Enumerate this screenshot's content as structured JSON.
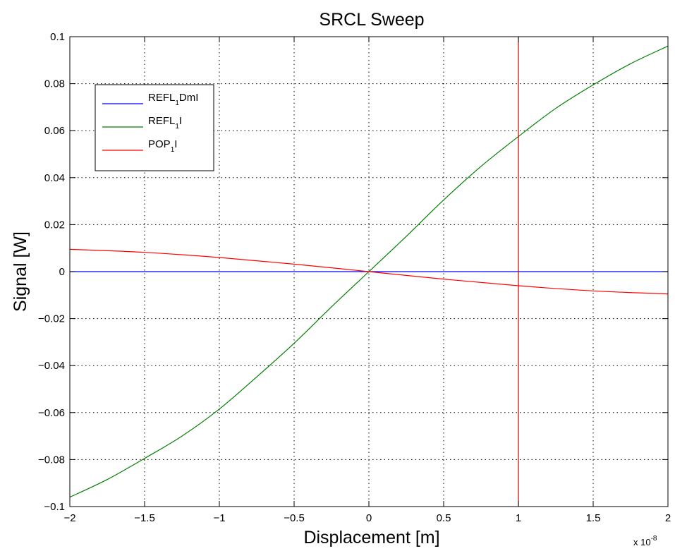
{
  "chart_data": {
    "type": "line",
    "title": "SRCL Sweep",
    "xlabel": "Displacement [m]",
    "ylabel": "Signal [W]",
    "x_multiplier": {
      "base": "x 10",
      "exponent": "-8"
    },
    "xlim": [
      -2,
      2
    ],
    "ylim": [
      -0.1,
      0.1
    ],
    "xticks": [
      -2,
      -1.5,
      -1,
      -0.5,
      0,
      0.5,
      1,
      1.5,
      2
    ],
    "xtick_labels": [
      "−2",
      "−1.5",
      "−1",
      "−0.5",
      "0",
      "0.5",
      "1",
      "1.5",
      "2"
    ],
    "yticks": [
      -0.1,
      -0.08,
      -0.06,
      -0.04,
      -0.02,
      0,
      0.02,
      0.04,
      0.06,
      0.08,
      0.1
    ],
    "ytick_labels": [
      "−0.1",
      "−0.08",
      "−0.06",
      "−0.04",
      "−0.02",
      "0",
      "0.02",
      "0.04",
      "0.06",
      "0.08",
      "0.1"
    ],
    "grid": true,
    "legend_position": "top-left",
    "series": [
      {
        "name": "REFL_1DmI",
        "legend": {
          "main": "REFL",
          "sub": "1",
          "suffix": "DmI"
        },
        "color": "#0000ff",
        "x": [
          -2,
          -1.5,
          -1,
          -0.5,
          0,
          0.5,
          1,
          1.5,
          2
        ],
        "y": [
          0,
          0,
          0,
          0,
          0,
          0,
          0,
          0,
          0
        ]
      },
      {
        "name": "REFL_1I",
        "legend": {
          "main": "REFL",
          "sub": "1",
          "suffix": "I"
        },
        "color": "#007f00",
        "x": [
          -2,
          -1.75,
          -1.5,
          -1.25,
          -1,
          -0.75,
          -0.5,
          -0.25,
          0,
          0.25,
          0.5,
          0.75,
          1,
          1.25,
          1.5,
          1.75,
          2
        ],
        "y": [
          -0.096,
          -0.0885,
          -0.0795,
          -0.07,
          -0.0585,
          -0.0448,
          -0.0305,
          -0.015,
          0,
          0.015,
          0.0305,
          0.0448,
          0.0575,
          0.0695,
          0.0795,
          0.0885,
          0.096
        ]
      },
      {
        "name": "POP_1I",
        "legend": {
          "main": "POP",
          "sub": "1",
          "suffix": "I"
        },
        "color": "#ff0000",
        "x": [
          -2,
          -1.5,
          -1,
          -0.5,
          0,
          0.5,
          1,
          1.5,
          2
        ],
        "y": [
          0.0095,
          0.0082,
          0.006,
          0.0032,
          0,
          -0.0032,
          -0.006,
          -0.0082,
          -0.0095
        ]
      }
    ],
    "vertical_line": {
      "x": 1,
      "color": "#cc0000"
    }
  }
}
